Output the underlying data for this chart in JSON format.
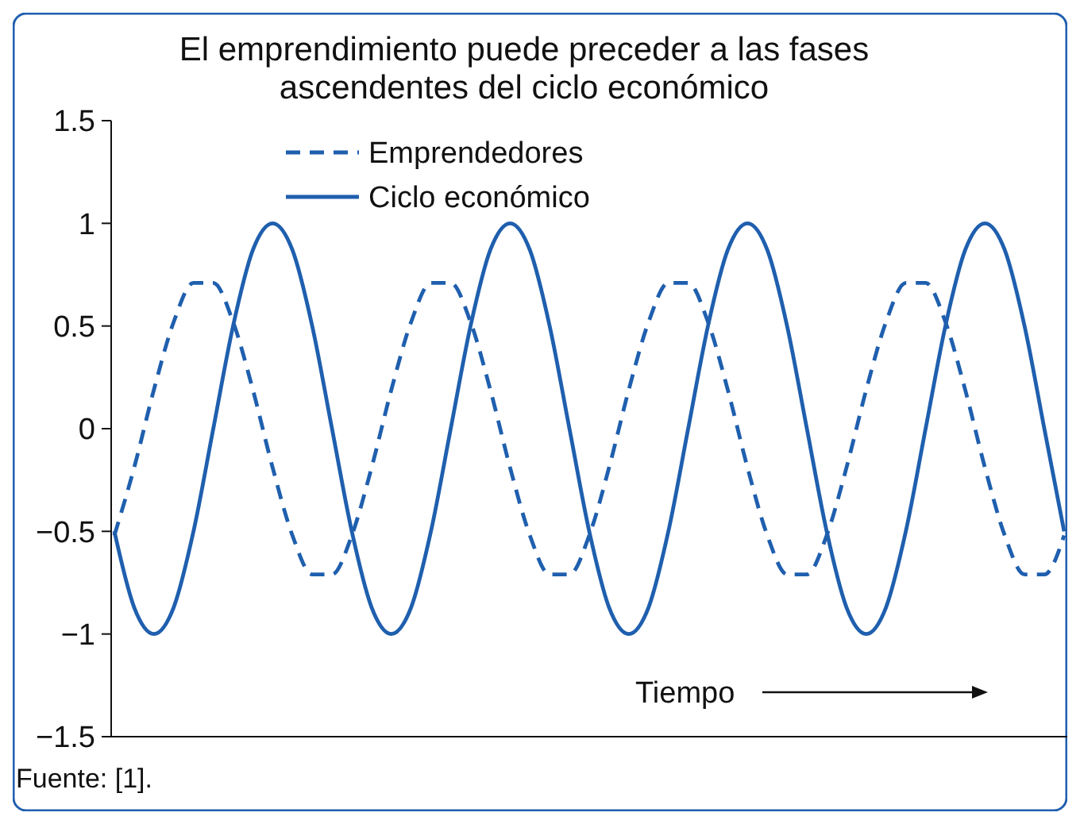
{
  "chart_data": {
    "type": "line",
    "title": "El emprendimiento puede preceder a las fases ascendentes del ciclo económico",
    "xlabel": "Tiempo",
    "annotations": [
      "Fuente: [1]."
    ],
    "categories": [
      null,
      null,
      null,
      null,
      null,
      null,
      null,
      null,
      null,
      null,
      null,
      null,
      null,
      null,
      null,
      null,
      null,
      null,
      null,
      null,
      null,
      null,
      null,
      null,
      null,
      null,
      null,
      null,
      null,
      null,
      null,
      null,
      null,
      null,
      null,
      null,
      null,
      null,
      null,
      null,
      null,
      null,
      null,
      null,
      null,
      null,
      null,
      null,
      null
    ],
    "series": [
      {
        "name": "Emprendedores",
        "color": "#1f5fae",
        "line_style": "dashed",
        "values": [
          -0.52,
          -0.19,
          0.19,
          0.52,
          0.71,
          0.71,
          0.52,
          0.19,
          -0.19,
          -0.52,
          -0.71,
          -0.71,
          -0.52,
          -0.19,
          0.19,
          0.52,
          0.71,
          0.71,
          0.52,
          0.19,
          -0.19,
          -0.52,
          -0.71,
          -0.71,
          -0.52,
          -0.19,
          0.19,
          0.52,
          0.71,
          0.71,
          0.52,
          0.19,
          -0.19,
          -0.52,
          -0.71,
          -0.71,
          -0.52,
          -0.19,
          0.19,
          0.52,
          0.71,
          0.71,
          0.52,
          0.19,
          -0.19,
          -0.52,
          -0.71,
          -0.71,
          -0.52
        ]
      },
      {
        "name": "Ciclo económico",
        "color": "#1f5fae",
        "line_style": "solid",
        "values": [
          -0.5,
          -0.87,
          -1,
          -0.87,
          -0.5,
          0,
          0.5,
          0.87,
          1,
          0.87,
          0.5,
          0,
          -0.5,
          -0.87,
          -1,
          -0.87,
          -0.5,
          0,
          0.5,
          0.87,
          1,
          0.87,
          0.5,
          0,
          -0.5,
          -0.87,
          -1,
          -0.87,
          -0.5,
          0,
          0.5,
          0.87,
          1,
          0.87,
          0.5,
          0,
          -0.5,
          -0.87,
          -1,
          -0.87,
          -0.5,
          0,
          0.5,
          0.87,
          1,
          0.87,
          0.5,
          0,
          -0.5
        ]
      }
    ],
    "ylim": [
      -1.5,
      1.5
    ],
    "yticks": [
      {
        "value": -1.5,
        "label": "−1.5"
      },
      {
        "value": -1,
        "label": "−1"
      },
      {
        "value": -0.5,
        "label": "−0.5"
      },
      0,
      0.5,
      1,
      1.5
    ],
    "legend": "top left",
    "tick_labels": "y",
    "grid": false
  }
}
